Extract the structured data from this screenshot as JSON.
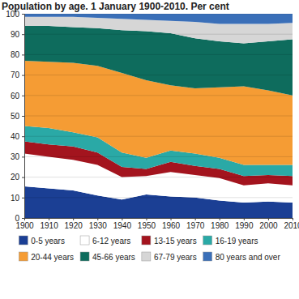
{
  "chart_data": {
    "type": "area",
    "stacked": true,
    "title": "Population by age. 1 January 1900-2010. Per cent",
    "x": [
      1900,
      1910,
      1920,
      1930,
      1940,
      1950,
      1960,
      1970,
      1980,
      1990,
      2000,
      2010
    ],
    "xlim": [
      1900,
      2010
    ],
    "xticks": [
      1900,
      1910,
      1920,
      1930,
      1940,
      1950,
      1960,
      1970,
      1980,
      1990,
      2000,
      2010
    ],
    "ylim": [
      0,
      100
    ],
    "yticks": [
      0,
      10,
      20,
      30,
      40,
      50,
      60,
      70,
      80,
      90,
      100
    ],
    "grid": true,
    "legend": "bottom",
    "series": [
      {
        "name": "0-5 years",
        "color": "#1b3f94",
        "values": [
          15.5,
          14.5,
          13.5,
          11,
          9,
          11.5,
          10.5,
          10,
          8.5,
          7.5,
          8,
          7.5
        ]
      },
      {
        "name": "6-12 years",
        "color": "#ffffff",
        "values": [
          16,
          15.5,
          15,
          15,
          11,
          9,
          12,
          11,
          11,
          8.5,
          9,
          8.5
        ]
      },
      {
        "name": "13-15 years",
        "color": "#a3141e",
        "values": [
          6,
          6,
          6.5,
          6,
          5,
          3.5,
          5,
          4.5,
          4.5,
          4.5,
          4,
          4.5
        ]
      },
      {
        "name": "16-19 years",
        "color": "#2aa9a6",
        "values": [
          7.5,
          8,
          7,
          7.5,
          7,
          5.5,
          5.5,
          6,
          5.5,
          5.5,
          5,
          5.5
        ]
      },
      {
        "name": "20-44 years",
        "color": "#f59c34",
        "values": [
          32,
          32.5,
          34,
          35,
          39,
          38,
          32,
          32,
          34.5,
          38.5,
          36.5,
          34
        ]
      },
      {
        "name": "45-66 years",
        "color": "#0e6c5d",
        "values": [
          17,
          17.5,
          17.5,
          18.5,
          21,
          24,
          25.5,
          24.5,
          22.5,
          21,
          24,
          27.5
        ]
      },
      {
        "name": "67-79 years",
        "color": "#d6d6d6",
        "values": [
          4.5,
          4.5,
          5,
          5,
          5.5,
          5.5,
          6,
          8,
          8.5,
          9.5,
          8.5,
          8
        ]
      },
      {
        "name": "80 years and over",
        "color": "#3a6fb8",
        "values": [
          1.5,
          1.5,
          1.5,
          2,
          2.5,
          3,
          3.5,
          4,
          5,
          5,
          5,
          4.5
        ]
      }
    ]
  }
}
